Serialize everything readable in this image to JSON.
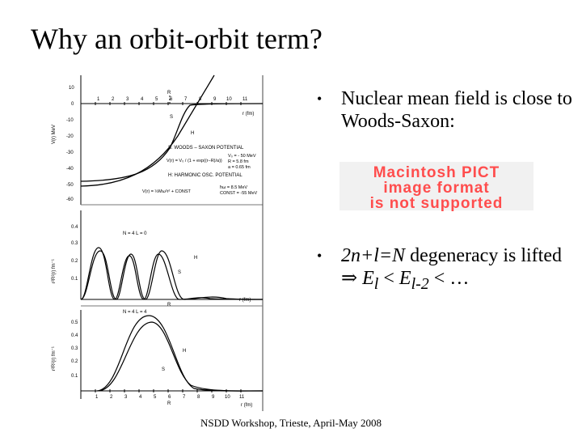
{
  "slide": {
    "title": "Why an orbit-orbit term?",
    "footer": "NSDD Workshop, Trieste, April-May 2008"
  },
  "bullets": [
    {
      "text": "Nuclear mean field is close to Woods-Saxon:"
    },
    {
      "pre": "2n+l=N",
      "mid": " degeneracy is lifted ⇒ ",
      "e1": "E",
      "s1": "l",
      "lt1": " < ",
      "e2": "E",
      "s2": "l-2",
      "tail": " < …"
    }
  ],
  "pict_placeholder": {
    "lines": [
      "Macintosh PICT",
      "image format",
      "is not supported"
    ],
    "color": "#ff4d4d"
  },
  "figure": {
    "top_panel": {
      "x_ticks": [
        "1",
        "2",
        "3",
        "4",
        "5",
        "6",
        "7",
        "8",
        "9",
        "10",
        "11"
      ],
      "y_ticks": [
        "10",
        "0",
        "-10",
        "-20",
        "-30",
        "-40",
        "-50",
        "-60"
      ],
      "y_label": "V(r) MeV",
      "x_label": "r (fm)",
      "marker_R": "R",
      "curve_labels": [
        "S",
        "H"
      ],
      "legend_ws": "S: WOODS – SAXON POTENTIAL",
      "ws_formula": "V(r) = V₀ / (1 + exp((r−R)/a))",
      "ws_params": [
        "V₀ = - 50 MeV",
        "R = 5.8 fm",
        "a = 0.65 fm"
      ],
      "legend_ho": "H: HARMONIC OSC. POTENTIAL",
      "ho_formula": "V(r) = ½Mω²r² + CONST",
      "ho_params": [
        "ħω = 8.5 MeV",
        "CONST = -55 MeV"
      ]
    },
    "mid_panel": {
      "y_ticks": [
        "0.4",
        "0.3",
        "0.2",
        "0.1"
      ],
      "y_label": "r²R²(r) fm⁻¹",
      "quantum_label": "N = 4   L = 0",
      "curve_labels": [
        "H",
        "S"
      ],
      "marker_R": "R",
      "x_label": "r (fm)"
    },
    "bottom_panel": {
      "y_ticks": [
        "0.5",
        "0.4",
        "0.3",
        "0.2",
        "0.1"
      ],
      "x_ticks": [
        "1",
        "2",
        "3",
        "4",
        "5",
        "6",
        "7",
        "8",
        "9",
        "10",
        "11"
      ],
      "y_label": "r²R²(r) fm⁻¹",
      "quantum_label": "N = 4   L = 4",
      "curve_labels": [
        "H",
        "S"
      ],
      "marker_R": "R",
      "x_label": "r (fm)"
    }
  }
}
